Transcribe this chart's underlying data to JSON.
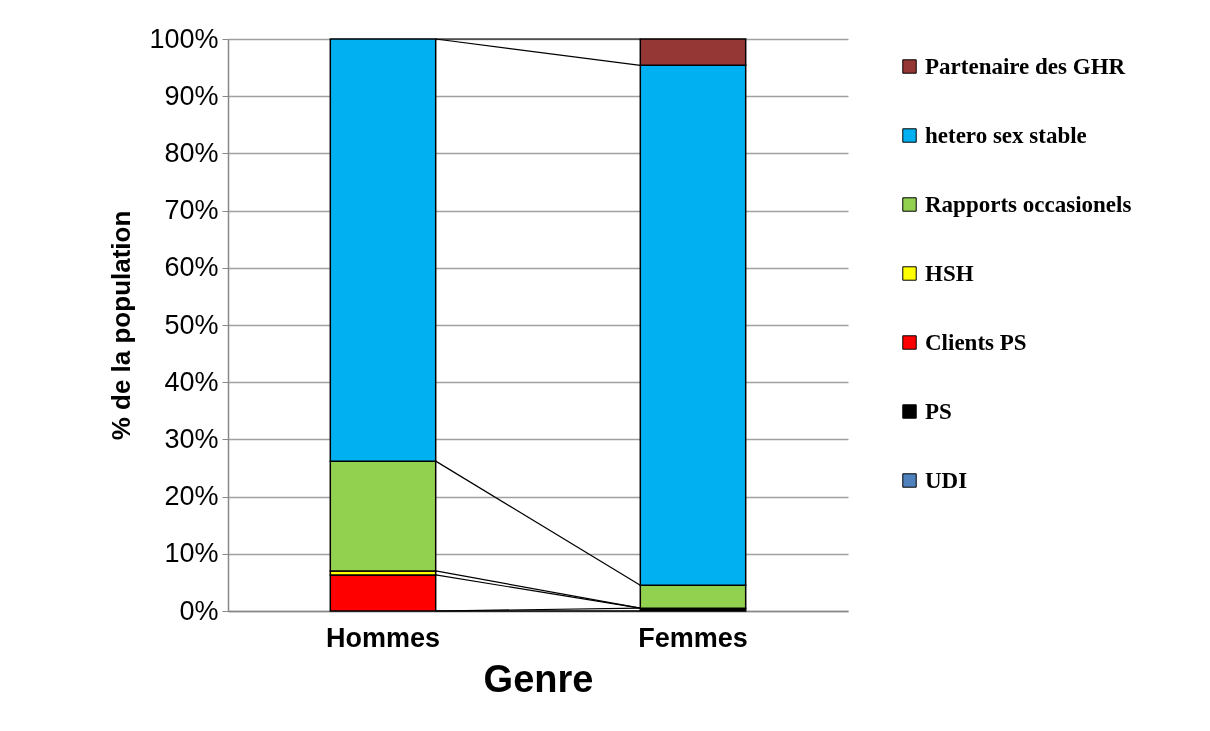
{
  "chart_data": {
    "type": "bar",
    "stacked": true,
    "xlabel": "Genre",
    "ylabel": "% de la population",
    "categories": [
      "Hommes",
      "Femmes"
    ],
    "series": [
      {
        "name": "UDI",
        "color": "#4f81bd",
        "values": [
          0,
          0
        ]
      },
      {
        "name": "PS",
        "color": "#000000",
        "values": [
          0,
          0.5
        ]
      },
      {
        "name": "Clients PS",
        "color": "#ff0000",
        "values": [
          6.3,
          0
        ]
      },
      {
        "name": "HSH",
        "color": "#ffff00",
        "values": [
          0.7,
          0
        ]
      },
      {
        "name": "Rapports occasionels",
        "color": "#92d050",
        "values": [
          19.2,
          4.0
        ]
      },
      {
        "name": "hetero sex stable",
        "color": "#00b0f0",
        "values": [
          73.8,
          90.9
        ]
      },
      {
        "name": "Partenaire des GHR",
        "color": "#953735",
        "values": [
          0,
          4.6
        ]
      }
    ],
    "ylim": [
      0,
      100
    ],
    "yticks": [
      {
        "value": 0,
        "label": "0%"
      },
      {
        "value": 10,
        "label": "10%"
      },
      {
        "value": 20,
        "label": "20%"
      },
      {
        "value": 30,
        "label": "30%"
      },
      {
        "value": 40,
        "label": "40%"
      },
      {
        "value": 50,
        "label": "50%"
      },
      {
        "value": 60,
        "label": "60%"
      },
      {
        "value": 70,
        "label": "70%"
      },
      {
        "value": 80,
        "label": "80%"
      },
      {
        "value": 90,
        "label": "90%"
      },
      {
        "value": 100,
        "label": "100%"
      }
    ],
    "grid": "y",
    "legend": "right"
  }
}
